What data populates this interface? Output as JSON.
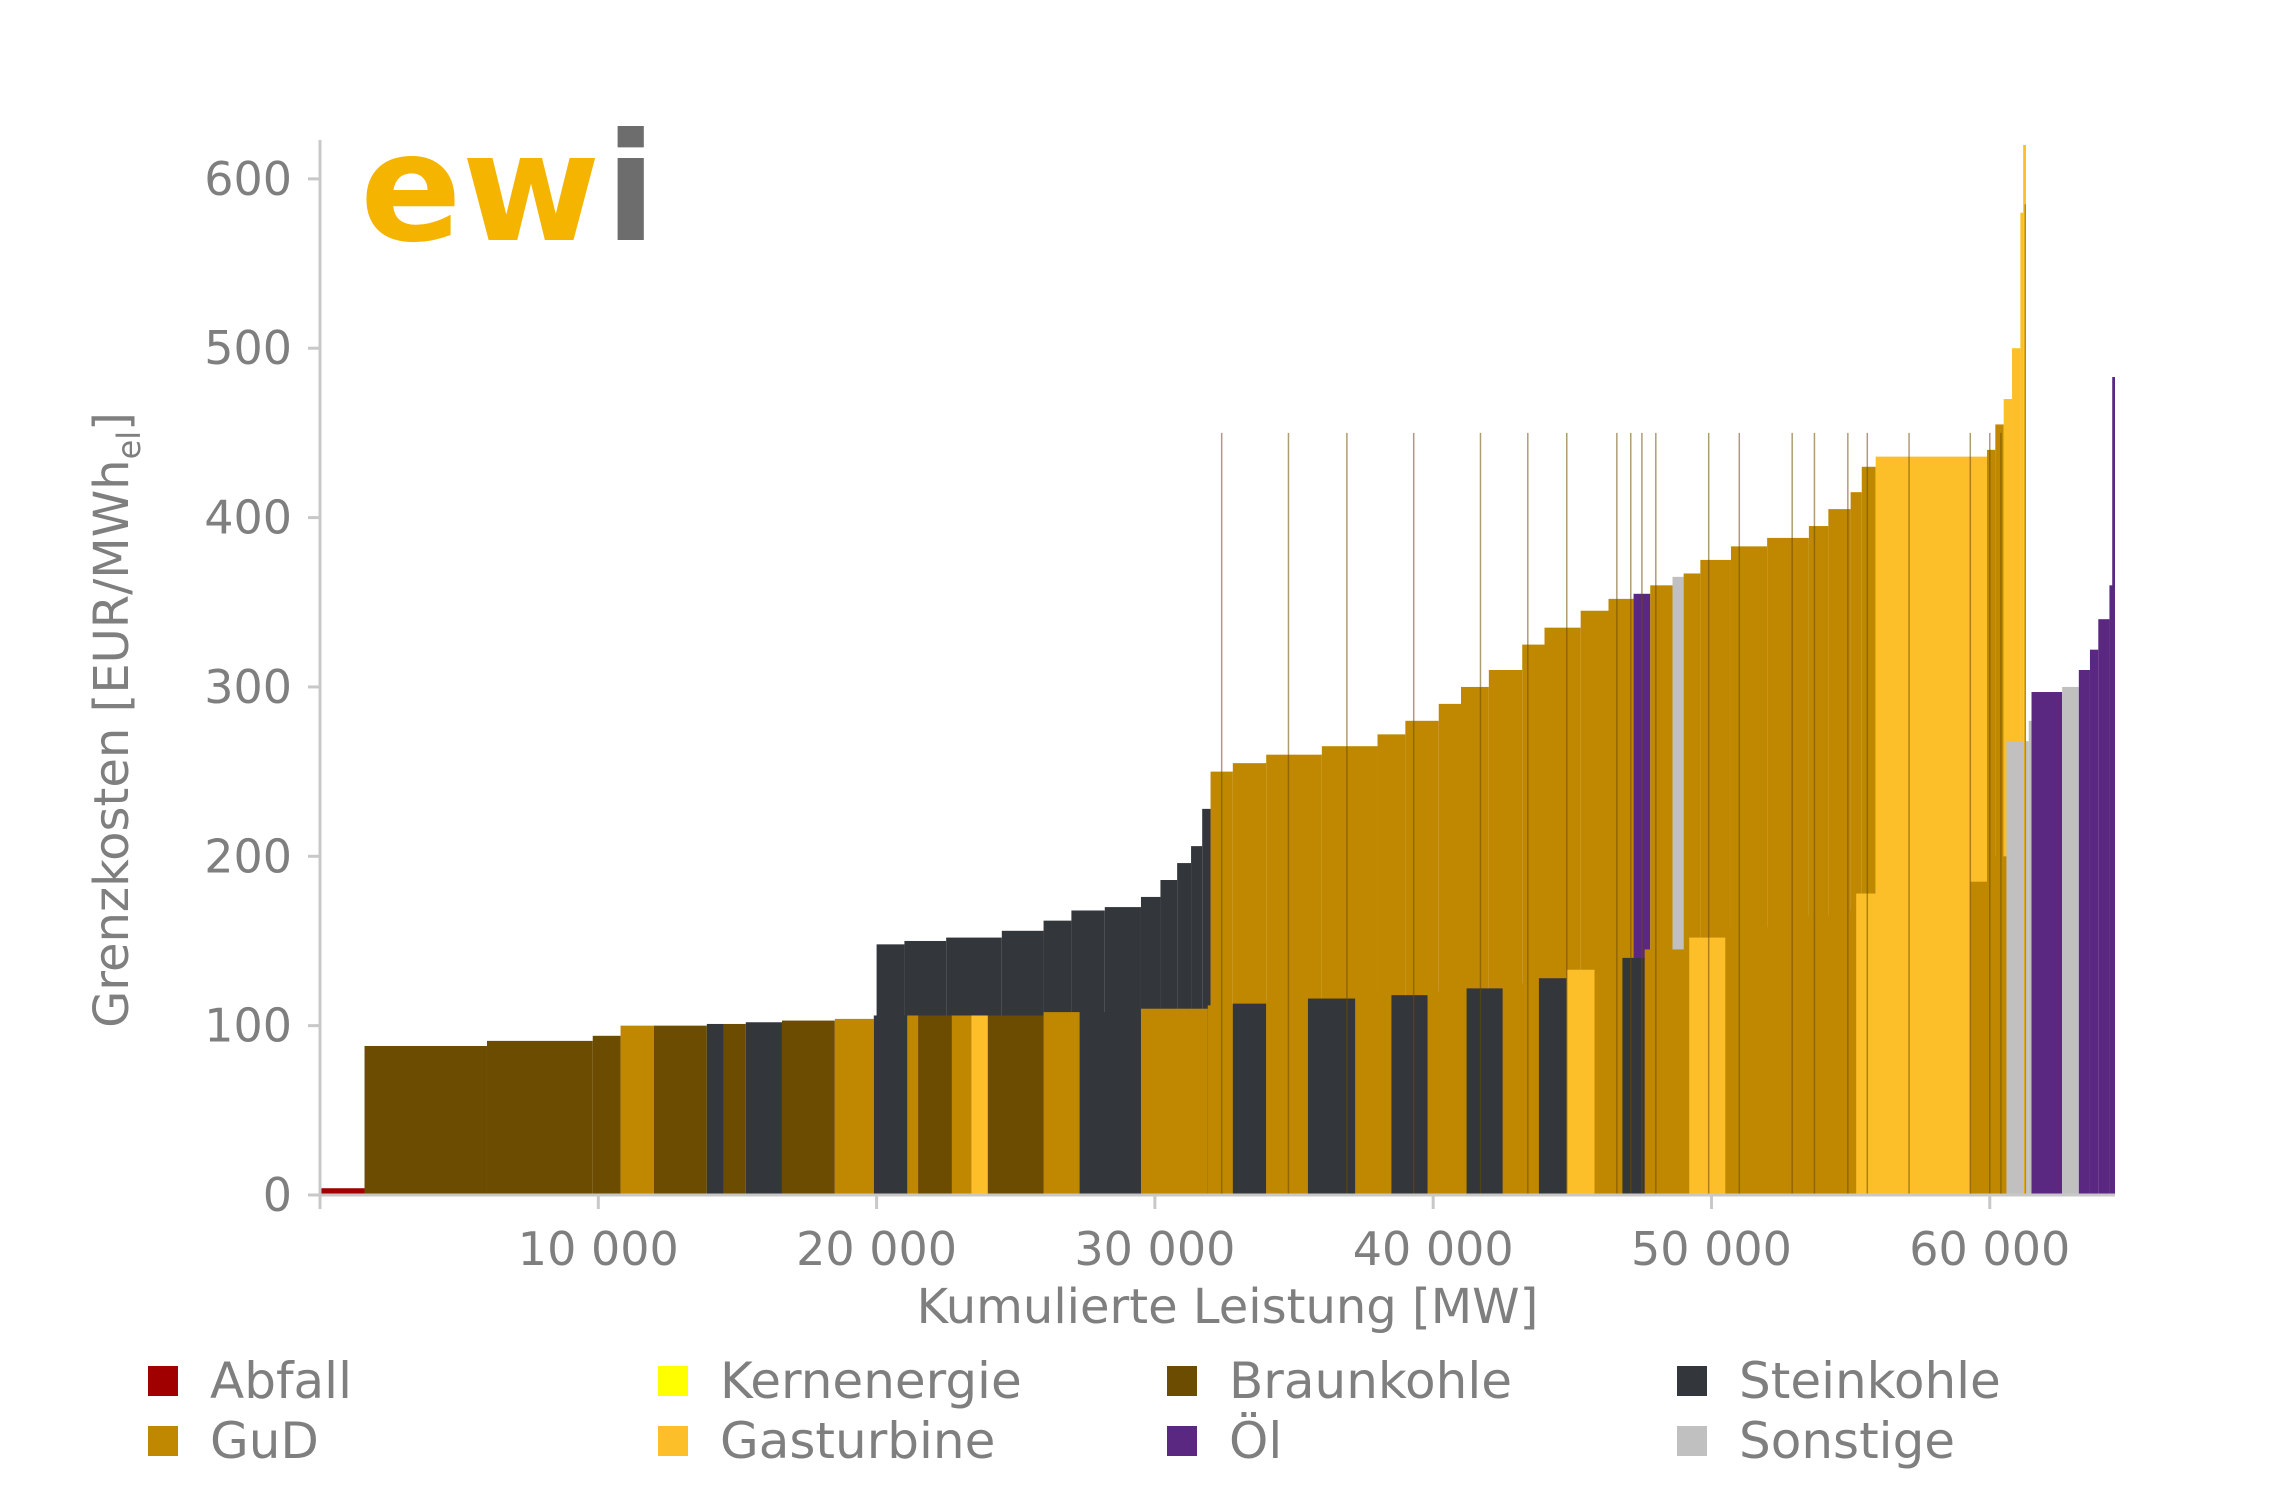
{
  "logo": {
    "text_main": "ew",
    "text_accent": "i",
    "main_color": "#f5b400",
    "accent_color": "#6d6d6d"
  },
  "chart_data": {
    "type": "bar",
    "subtype": "merit-order",
    "xlabel": "Kumulierte Leistung [MW]",
    "ylabel": "Grenzkosten [EUR/MWh",
    "ylabel_subscript": "el",
    "ylabel_suffix": "]",
    "xlim": [
      0,
      64500
    ],
    "ylim": [
      0,
      620
    ],
    "x_ticks": [
      10000,
      20000,
      30000,
      40000,
      50000,
      60000
    ],
    "x_tick_labels": [
      "10 000",
      "20 000",
      "30 000",
      "40 000",
      "50 000",
      "60 000"
    ],
    "y_ticks": [
      0,
      100,
      200,
      300,
      400,
      500,
      600
    ],
    "y_tick_labels": [
      "0",
      "100",
      "200",
      "300",
      "400",
      "500",
      "600"
    ],
    "grid": false,
    "legend_position": "bottom",
    "colors": {
      "Abfall": "#a00000",
      "Kernenergie": "#ffff00",
      "Braunkohle": "#6b4c00",
      "Steinkohle": "#33363a",
      "GuD": "#bf8800",
      "Gasturbine": "#fcbf2a",
      "Öl": "#5a2880",
      "Sonstige": "#c0c0c0"
    },
    "legend": [
      {
        "name": "Abfall",
        "color": "#a00000"
      },
      {
        "name": "Kernenergie",
        "color": "#ffff00"
      },
      {
        "name": "Braunkohle",
        "color": "#6b4c00"
      },
      {
        "name": "Steinkohle",
        "color": "#33363a"
      },
      {
        "name": "GuD",
        "color": "#bf8800"
      },
      {
        "name": "Gasturbine",
        "color": "#fcbf2a"
      },
      {
        "name": "Öl",
        "color": "#5a2880"
      },
      {
        "name": "Sonstige",
        "color": "#c0c0c0"
      }
    ],
    "back_profile": [
      [
        32000,
        32800,
        "GuD",
        250
      ],
      [
        32800,
        34000,
        "GuD",
        255
      ],
      [
        34000,
        36000,
        "GuD",
        260
      ],
      [
        36000,
        38000,
        "GuD",
        265
      ],
      [
        38000,
        39000,
        "GuD",
        272
      ],
      [
        39000,
        40200,
        "GuD",
        280
      ],
      [
        40200,
        41000,
        "GuD",
        290
      ],
      [
        41000,
        42000,
        "GuD",
        300
      ],
      [
        42000,
        43200,
        "GuD",
        310
      ],
      [
        43200,
        44000,
        "GuD",
        325
      ],
      [
        44000,
        45300,
        "GuD",
        335
      ],
      [
        45300,
        46300,
        "GuD",
        345
      ],
      [
        46300,
        47200,
        "GuD",
        352
      ],
      [
        47200,
        47800,
        "Öl",
        355
      ],
      [
        47800,
        48600,
        "GuD",
        360
      ],
      [
        48600,
        49000,
        "Sonstige",
        365
      ],
      [
        49000,
        49600,
        "GuD",
        367
      ],
      [
        49600,
        50700,
        "GuD",
        375
      ],
      [
        50700,
        52000,
        "GuD",
        383
      ],
      [
        52000,
        53500,
        "GuD",
        388
      ],
      [
        53500,
        54200,
        "GuD",
        395
      ],
      [
        54200,
        55000,
        "GuD",
        405
      ],
      [
        55000,
        55400,
        "GuD",
        415
      ],
      [
        55400,
        55900,
        "GuD",
        430
      ],
      [
        55900,
        59900,
        "Gasturbine",
        436
      ],
      [
        59900,
        60200,
        "GuD",
        440
      ],
      [
        60200,
        60500,
        "GuD",
        455
      ],
      [
        60500,
        60800,
        "Gasturbine",
        470
      ],
      [
        60800,
        61100,
        "Gasturbine",
        500
      ],
      [
        61100,
        61200,
        "Gasturbine",
        580
      ]
    ],
    "front_blocks": [
      [
        0,
        1600,
        "Abfall",
        4
      ],
      [
        1600,
        6000,
        "Braunkohle",
        88
      ],
      [
        6000,
        9800,
        "Braunkohle",
        91
      ],
      [
        9800,
        10800,
        "Braunkohle",
        94
      ],
      [
        10800,
        12000,
        "GuD",
        100
      ],
      [
        12000,
        13900,
        "Braunkohle",
        100
      ],
      [
        13900,
        14500,
        "Steinkohle",
        101
      ],
      [
        14500,
        15300,
        "Braunkohle",
        101
      ],
      [
        15300,
        16600,
        "Steinkohle",
        102
      ],
      [
        16600,
        18500,
        "Braunkohle",
        103
      ],
      [
        18500,
        19900,
        "GuD",
        104
      ],
      [
        19900,
        21100,
        "Steinkohle",
        106
      ],
      [
        21100,
        21500,
        "GuD",
        106
      ],
      [
        21500,
        22700,
        "Braunkohle",
        106
      ],
      [
        22700,
        23400,
        "GuD",
        106
      ],
      [
        23400,
        24000,
        "Gasturbine",
        106
      ],
      [
        24000,
        26000,
        "Braunkohle",
        106
      ],
      [
        26000,
        27300,
        "GuD",
        108
      ],
      [
        27300,
        29500,
        "Steinkohle",
        108
      ],
      [
        29500,
        31900,
        "GuD",
        110
      ],
      [
        31900,
        32800,
        "GuD",
        112
      ],
      [
        32800,
        34000,
        "Steinkohle",
        113
      ],
      [
        34000,
        35500,
        "GuD",
        115
      ],
      [
        35500,
        37200,
        "Steinkohle",
        116
      ],
      [
        37200,
        38500,
        "GuD",
        117
      ],
      [
        38500,
        39800,
        "Steinkohle",
        118
      ],
      [
        39800,
        41200,
        "GuD",
        120
      ],
      [
        41200,
        42500,
        "Steinkohle",
        122
      ],
      [
        42500,
        43800,
        "GuD",
        125
      ],
      [
        43800,
        44800,
        "Steinkohle",
        128
      ],
      [
        44800,
        45800,
        "Gasturbine",
        133
      ],
      [
        45800,
        46800,
        "GuD",
        136
      ],
      [
        46800,
        47600,
        "Steinkohle",
        140
      ],
      [
        47600,
        49200,
        "GuD",
        145
      ],
      [
        49200,
        50500,
        "Gasturbine",
        152
      ],
      [
        50500,
        52500,
        "GuD",
        158
      ],
      [
        52500,
        54300,
        "GuD",
        165
      ],
      [
        54300,
        55200,
        "GuD",
        168
      ],
      [
        55200,
        57100,
        "Gasturbine",
        178
      ],
      [
        57100,
        59300,
        "Gasturbine",
        178
      ],
      [
        59300,
        59900,
        "GuD",
        185
      ],
      [
        59900,
        60600,
        "GuD",
        200
      ],
      [
        60600,
        61400,
        "Sonstige",
        268
      ],
      [
        61400,
        61500,
        "Sonstige",
        280
      ],
      [
        61500,
        62600,
        "Öl",
        297
      ],
      [
        62600,
        63200,
        "Sonstige",
        300
      ],
      [
        63200,
        63600,
        "Öl",
        310
      ],
      [
        63600,
        63900,
        "Öl",
        322
      ],
      [
        63900,
        64300,
        "Öl",
        340
      ],
      [
        64300,
        64500,
        "Öl",
        360
      ]
    ],
    "dark_steps": [
      [
        20000,
        21000,
        148
      ],
      [
        21000,
        22500,
        150
      ],
      [
        22500,
        24500,
        152
      ],
      [
        24500,
        26000,
        156
      ],
      [
        26000,
        27000,
        162
      ],
      [
        27000,
        28200,
        168
      ],
      [
        28200,
        29500,
        170
      ],
      [
        29500,
        30200,
        176
      ],
      [
        30200,
        30800,
        186
      ],
      [
        30800,
        31300,
        196
      ],
      [
        31300,
        31700,
        206
      ],
      [
        31700,
        32000,
        228
      ]
    ],
    "spikes": [
      [
        61200,
        61300,
        "Gasturbine",
        620
      ],
      [
        61250,
        61300,
        "GuD",
        585
      ],
      [
        64400,
        64500,
        "Öl",
        483
      ]
    ],
    "dividers_x": [
      32400,
      34800,
      36900,
      39300,
      41700,
      43400,
      44800,
      46600,
      47100,
      47500,
      48000,
      49900,
      51000,
      52900,
      53700,
      54900,
      55600,
      57100,
      59300,
      60000,
      60400
    ]
  }
}
